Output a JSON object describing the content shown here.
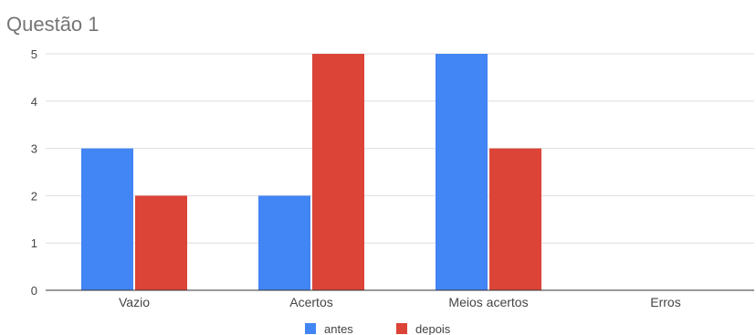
{
  "chart_data": {
    "type": "bar",
    "title": "Questão 1",
    "categories": [
      "Vazio",
      "Acertos",
      "Meios acertos",
      "Erros"
    ],
    "series": [
      {
        "name": "antes",
        "color": "#4285F4",
        "values": [
          3,
          2,
          5,
          0
        ]
      },
      {
        "name": "depois",
        "color": "#DB4437",
        "values": [
          2,
          5,
          3,
          0
        ]
      }
    ],
    "yticks": [
      "0",
      "1",
      "2",
      "3",
      "4",
      "5"
    ],
    "ylim": [
      0,
      5
    ],
    "grid": true,
    "legend_position": "bottom"
  }
}
